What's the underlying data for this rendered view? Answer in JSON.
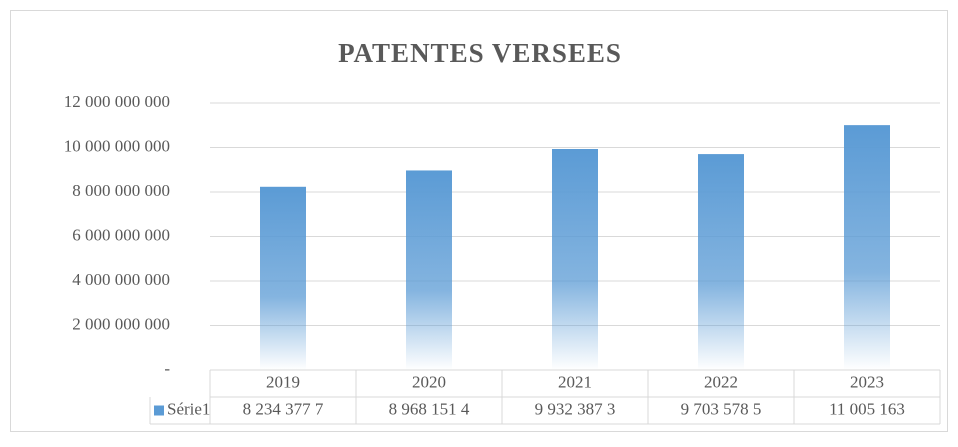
{
  "chart_data": {
    "type": "bar",
    "title": "PATENTES VERSEES",
    "categories": [
      "2019",
      "2020",
      "2021",
      "2022",
      "2023"
    ],
    "series": [
      {
        "name": "Série1",
        "color": "#5b9bd5",
        "values": [
          8234377700,
          8968151400,
          9932387300,
          9703578500,
          11005163000
        ],
        "value_labels": [
          "8 234 377 7",
          "8 968 151 4",
          "9 932 387 3",
          "9 703 578 5",
          "11 005 163"
        ]
      }
    ],
    "ylim": [
      0,
      12000000000
    ],
    "yticks": [
      {
        "value": 0,
        "label": "-"
      },
      {
        "value": 2000000000,
        "label": "2 000 000 000"
      },
      {
        "value": 4000000000,
        "label": "4 000 000 000"
      },
      {
        "value": 6000000000,
        "label": "6 000 000 000"
      },
      {
        "value": 8000000000,
        "label": "8 000 000 000"
      },
      {
        "value": 10000000000,
        "label": "10 000 000 000"
      },
      {
        "value": 12000000000,
        "label": "12 000 000 000"
      }
    ],
    "grid": true
  }
}
